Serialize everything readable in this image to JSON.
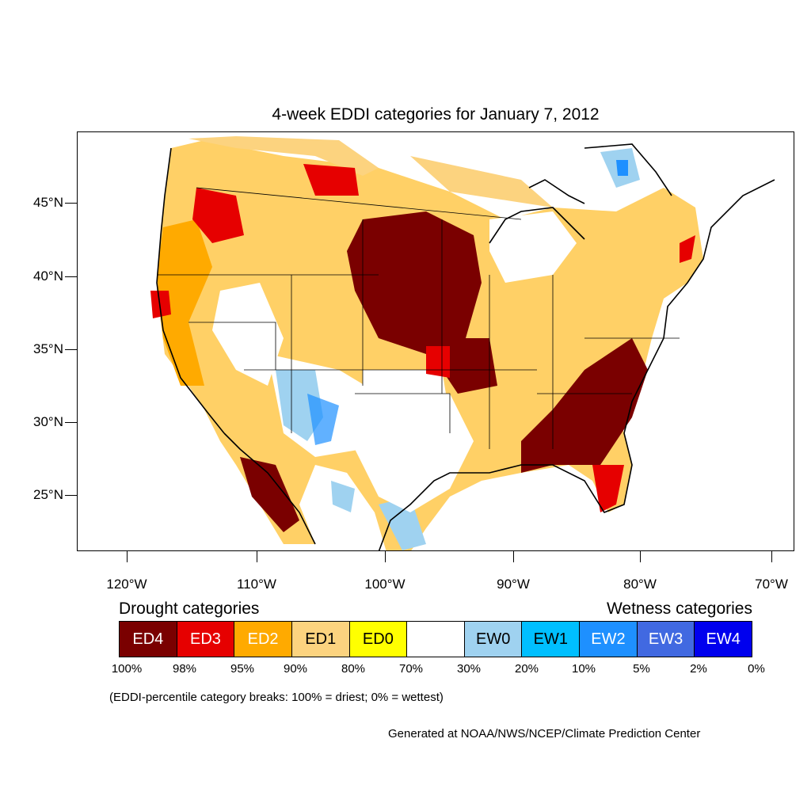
{
  "title": "4-week EDDI categories for January 7, 2012",
  "y_axis_labels": [
    "45°N",
    "40°N",
    "35°N",
    "30°N",
    "25°N"
  ],
  "x_axis_labels": [
    "120°W",
    "110°W",
    "100°W",
    "90°W",
    "80°W",
    "70°W"
  ],
  "legend": {
    "drought_title": "Drought categories",
    "wetness_title": "Wetness categories",
    "categories": [
      {
        "label": "ED4",
        "color": "#7a0000",
        "text_color": "#ffffff"
      },
      {
        "label": "ED3",
        "color": "#e60000",
        "text_color": "#ffffff"
      },
      {
        "label": "ED2",
        "color": "#ffaa00",
        "text_color": "#ffffff"
      },
      {
        "label": "ED1",
        "color": "#fcd37f",
        "text_color": "#000000"
      },
      {
        "label": "ED0",
        "color": "#ffff00",
        "text_color": "#000000"
      },
      {
        "label": "",
        "color": "#ffffff",
        "text_color": "#000000"
      },
      {
        "label": "EW0",
        "color": "#9fd2f0",
        "text_color": "#000000"
      },
      {
        "label": "EW1",
        "color": "#00bfff",
        "text_color": "#000000"
      },
      {
        "label": "EW2",
        "color": "#1e90ff",
        "text_color": "#ffffff"
      },
      {
        "label": "EW3",
        "color": "#4169e1",
        "text_color": "#ffffff"
      },
      {
        "label": "EW4",
        "color": "#0000ee",
        "text_color": "#ffffff"
      }
    ],
    "percent_breaks": [
      "100%",
      "98%",
      "95%",
      "90%",
      "80%",
      "70%",
      "30%",
      "20%",
      "10%",
      "5%",
      "2%",
      "0%"
    ]
  },
  "breaks_note": "(EDDI-percentile category breaks: 100% = driest; 0% = wettest)",
  "credit": "Generated at NOAA/NWS/NCEP/Climate Prediction Center"
}
